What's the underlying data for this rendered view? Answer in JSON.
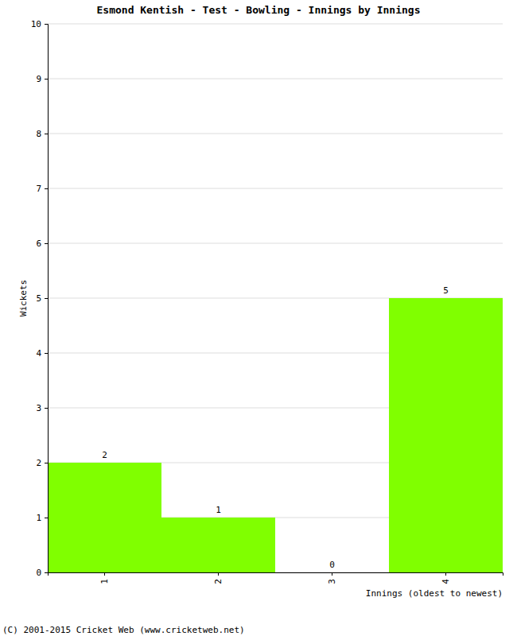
{
  "chart_data": {
    "type": "bar",
    "title": "Esmond Kentish - Test - Bowling - Innings by Innings",
    "x_label": "Innings (oldest to newest)",
    "y_label": "Wickets",
    "annotations": [
      "(C) 2001-2015 Cricket Web (www.cricketweb.net)"
    ],
    "categories": [
      "1",
      "2",
      "3",
      "4"
    ],
    "values": [
      2,
      1,
      0,
      5
    ],
    "color": "#80ff00",
    "ylim": [
      0,
      10
    ],
    "yticks": [
      0,
      1,
      2,
      3,
      4,
      5,
      6,
      7,
      8,
      9,
      10
    ],
    "grid": true,
    "data_labels": true
  }
}
